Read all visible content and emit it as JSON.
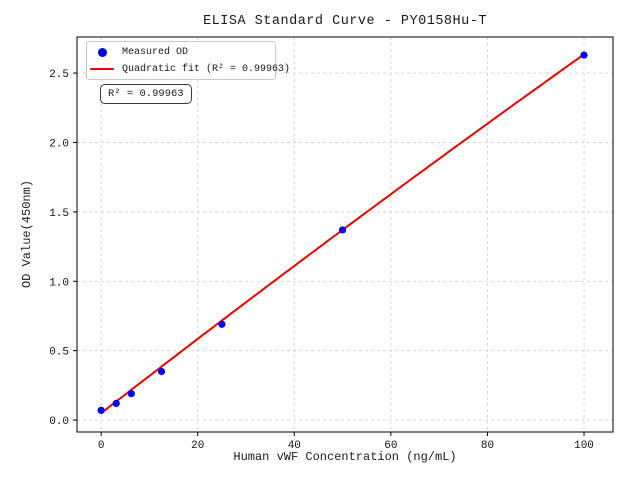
{
  "chart_data": {
    "type": "scatter",
    "title": "ELISA Standard Curve - PY0158Hu-T",
    "xlabel": "Human vWF Concentration (ng/mL)",
    "ylabel": "OD Value(450nm)",
    "xlim": [
      -5,
      106
    ],
    "ylim": [
      -0.086,
      2.76
    ],
    "xticks": [
      0,
      20,
      40,
      60,
      80,
      100
    ],
    "xtick_labels": [
      "0",
      "20",
      "40",
      "60",
      "80",
      "100"
    ],
    "yticks": [
      0,
      0.5,
      1.0,
      1.5,
      2.0,
      2.5
    ],
    "ytick_labels": [
      "0.0",
      "0.5",
      "1.0",
      "1.5",
      "2.0",
      "2.5"
    ],
    "grid": {
      "show": true,
      "style": "dashed",
      "color": "#d2d2d2"
    },
    "axis_color": "#000000",
    "series": [
      {
        "name": "Measured OD",
        "type": "scatter",
        "marker": "circle",
        "color": "#0000ee",
        "x": [
          0,
          3.125,
          6.25,
          12.5,
          25,
          50,
          100
        ],
        "y": [
          0.07,
          0.12,
          0.19,
          0.35,
          0.69,
          1.37,
          2.63
        ]
      },
      {
        "name": "Quadratic fit (R² = 0.99963)",
        "type": "line",
        "color": "#ee0000",
        "fit_coefficients": {
          "intercept": 0.05,
          "linear": 0.02695,
          "quadratic": -1.1e-05
        },
        "x_range": [
          0,
          100
        ],
        "r_squared": 0.99963
      }
    ],
    "legend": {
      "position": "upper-left",
      "items": [
        {
          "label": "Measured OD",
          "marker": "dot",
          "color": "#0000ee"
        },
        {
          "label": "Quadratic fit (R² = 0.99963)",
          "marker": "line",
          "color": "#ee0000"
        }
      ]
    },
    "annotation": {
      "text": "R² = 0.99963"
    }
  }
}
